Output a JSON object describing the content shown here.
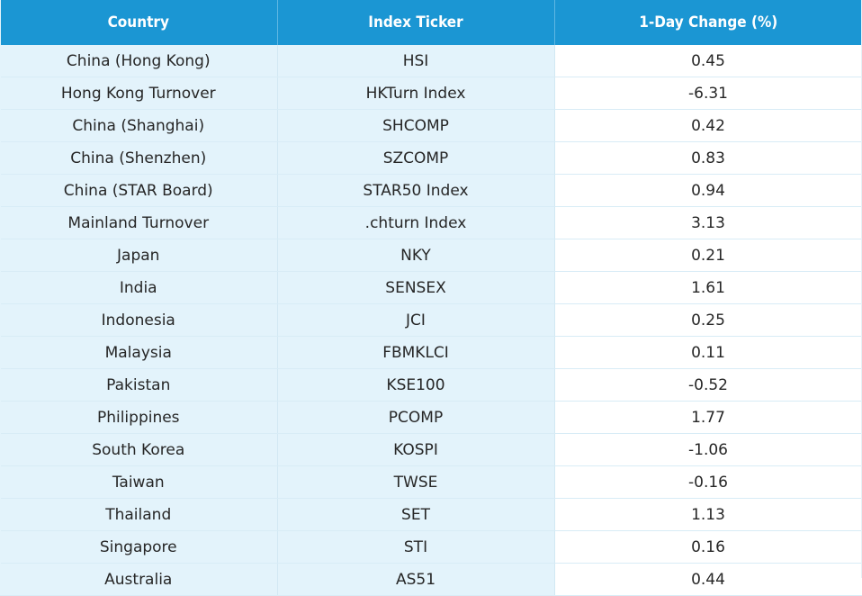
{
  "chart_data": {
    "type": "table",
    "columns": [
      "Country",
      "Index Ticker",
      "1-Day Change (%)"
    ],
    "rows": [
      {
        "country": "China (Hong Kong)",
        "ticker": "HSI",
        "change": "0.45"
      },
      {
        "country": "Hong Kong Turnover",
        "ticker": "HKTurn Index",
        "change": "-6.31"
      },
      {
        "country": "China (Shanghai)",
        "ticker": "SHCOMP",
        "change": "0.42"
      },
      {
        "country": "China (Shenzhen)",
        "ticker": "SZCOMP",
        "change": "0.83"
      },
      {
        "country": "China (STAR Board)",
        "ticker": "STAR50 Index",
        "change": "0.94"
      },
      {
        "country": "Mainland Turnover",
        "ticker": ".chturn Index",
        "change": "3.13"
      },
      {
        "country": "Japan",
        "ticker": "NKY",
        "change": "0.21"
      },
      {
        "country": "India",
        "ticker": "SENSEX",
        "change": "1.61"
      },
      {
        "country": "Indonesia",
        "ticker": "JCI",
        "change": "0.25"
      },
      {
        "country": "Malaysia",
        "ticker": "FBMKLCI",
        "change": "0.11"
      },
      {
        "country": "Pakistan",
        "ticker": "KSE100",
        "change": "-0.52"
      },
      {
        "country": "Philippines",
        "ticker": "PCOMP",
        "change": "1.77"
      },
      {
        "country": "South Korea",
        "ticker": "KOSPI",
        "change": "-1.06"
      },
      {
        "country": "Taiwan",
        "ticker": "TWSE",
        "change": "-0.16"
      },
      {
        "country": "Thailand",
        "ticker": "SET",
        "change": "1.13"
      },
      {
        "country": "Singapore",
        "ticker": "STI",
        "change": "0.16"
      },
      {
        "country": "Australia",
        "ticker": "AS51",
        "change": "0.44"
      }
    ]
  },
  "colors": {
    "header_bg": "#1b96d3",
    "header_text": "#ffffff",
    "label_column_bg": "#e3f3fb",
    "value_column_bg": "#ffffff"
  }
}
